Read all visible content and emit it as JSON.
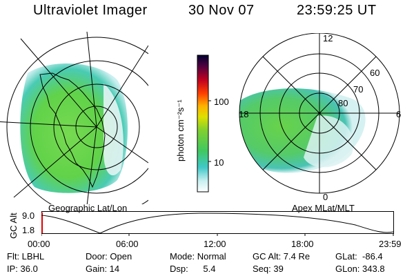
{
  "header": {
    "instrument": "Ultraviolet Imager",
    "date": "30 Nov 07",
    "time": "23:59:25 UT"
  },
  "maps": {
    "geo_label": "Geographic Lat/Lon",
    "apex_label": "Apex MLat/MLT"
  },
  "colorbar": {
    "unit_label": "photon cm⁻²s⁻¹",
    "ticks": [
      "100",
      "10"
    ]
  },
  "polar": {
    "mlt_labels": {
      "top": "12",
      "left": "18",
      "right": "6",
      "bottom": "0"
    },
    "mlat_labels": [
      "60",
      "70",
      "80"
    ]
  },
  "timeline": {
    "ylabel": "GC Alt",
    "yticks": [
      "9.0",
      "1.8"
    ],
    "xticks": [
      "00:00",
      "06:00",
      "12:00",
      "18:00",
      "23:59"
    ]
  },
  "status": {
    "flt": "Flt: LBHL",
    "ip": "IP: 36.0",
    "door": "Door: Open",
    "gain": "Gain: 14",
    "mode": "Mode: Normal",
    "dsp": "Dsp:      5.4",
    "gcalt": "GC Alt: 7.4 Re",
    "seq": "Seq: 39",
    "glat": "GLat:  -86.4",
    "glon": "GLon: 343.8"
  },
  "colors": {
    "aurora_green": "#58d040",
    "aurora_teal": "#38c8b8",
    "timeline_marker": "#e00000"
  }
}
